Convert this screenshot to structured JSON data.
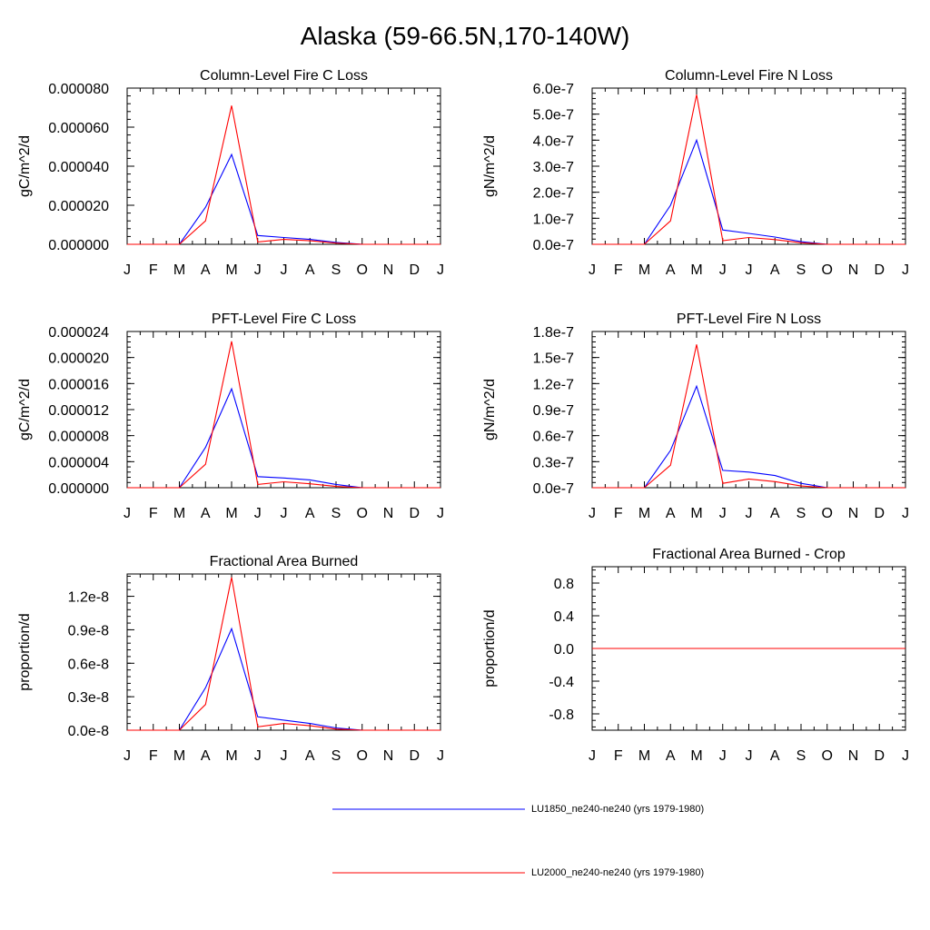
{
  "title": "Alaska (59-66.5N,170-140W)",
  "months": [
    "J",
    "F",
    "M",
    "A",
    "M",
    "J",
    "J",
    "A",
    "S",
    "O",
    "N",
    "D",
    "J"
  ],
  "legend": [
    {
      "name": "LU1850_ne240-ne240 (yrs 1979-1980)",
      "color": "#0000ff"
    },
    {
      "name": "LU2000_ne240-ne240 (yrs 1979-1980)",
      "color": "#ff0000"
    }
  ],
  "chart_data": [
    {
      "type": "line",
      "title": "Column-Level Fire C Loss",
      "ylabel": "gC/m^2/d",
      "ylim": [
        0,
        8e-05
      ],
      "yticks": [
        "0.000000",
        "0.000020",
        "0.000040",
        "0.000060",
        "0.000080"
      ],
      "yticks_values": [
        0,
        2e-05,
        4e-05,
        6e-05,
        8e-05
      ],
      "yminor_per_major": 4,
      "series": [
        {
          "name": "LU1850_ne240-ne240 (yrs 1979-1980)",
          "color": "#0000ff",
          "values": [
            0,
            0,
            0,
            1.9e-05,
            4.6e-05,
            4.5e-06,
            3.5e-06,
            2.5e-06,
            1e-06,
            0,
            0,
            0,
            0
          ]
        },
        {
          "name": "LU2000_ne240-ne240 (yrs 1979-1980)",
          "color": "#ff0000",
          "values": [
            0,
            0,
            0,
            1.2e-05,
            7.1e-05,
            1.2e-06,
            2.5e-06,
            1.8e-06,
            6e-07,
            0,
            0,
            0,
            0
          ]
        }
      ]
    },
    {
      "type": "line",
      "title": "Column-Level Fire N Loss",
      "ylabel": "gN/m^2/d",
      "ylim": [
        0,
        6e-07
      ],
      "yticks": [
        "0.0e-7",
        "1.0e-7",
        "2.0e-7",
        "3.0e-7",
        "4.0e-7",
        "5.0e-7",
        "6.0e-7"
      ],
      "yticks_values": [
        0,
        1e-07,
        2e-07,
        3e-07,
        4e-07,
        5e-07,
        6e-07
      ],
      "yminor_per_major": 4,
      "series": [
        {
          "name": "LU1850_ne240-ne240 (yrs 1979-1980)",
          "color": "#0000ff",
          "values": [
            0,
            0,
            0,
            1.5e-07,
            4e-07,
            5.5e-08,
            4.2e-08,
            2.8e-08,
            1e-08,
            0,
            0,
            0,
            0
          ]
        },
        {
          "name": "LU2000_ne240-ne240 (yrs 1979-1980)",
          "color": "#ff0000",
          "values": [
            0,
            0,
            0,
            9e-08,
            5.75e-07,
            1.4e-08,
            2.6e-08,
            1.8e-08,
            6e-09,
            0,
            0,
            0,
            0
          ]
        }
      ]
    },
    {
      "type": "line",
      "title": "PFT-Level Fire C Loss",
      "ylabel": "gC/m^2/d",
      "ylim": [
        0,
        2.4e-05
      ],
      "yticks": [
        "0.000000",
        "0.000004",
        "0.000008",
        "0.000012",
        "0.000016",
        "0.000020",
        "0.000024"
      ],
      "yticks_values": [
        0,
        4e-06,
        8e-06,
        1.2e-05,
        1.6e-05,
        2e-05,
        2.4e-05
      ],
      "yminor_per_major": 4,
      "series": [
        {
          "name": "LU1850_ne240-ne240 (yrs 1979-1980)",
          "color": "#0000ff",
          "values": [
            0,
            0,
            0,
            6.2e-06,
            1.52e-05,
            1.7e-06,
            1.5e-06,
            1.2e-06,
            5e-07,
            0,
            0,
            0,
            0
          ]
        },
        {
          "name": "LU2000_ne240-ne240 (yrs 1979-1980)",
          "color": "#ff0000",
          "values": [
            0,
            0,
            0,
            3.6e-06,
            2.25e-05,
            5e-07,
            9e-07,
            6e-07,
            2e-07,
            0,
            0,
            0,
            0
          ]
        }
      ]
    },
    {
      "type": "line",
      "title": "PFT-Level Fire N Loss",
      "ylabel": "gN/m^2/d",
      "ylim": [
        0,
        1.8e-07
      ],
      "yticks": [
        "0.0e-7",
        "0.3e-7",
        "0.6e-7",
        "0.9e-7",
        "1.2e-7",
        "1.5e-7",
        "1.8e-7"
      ],
      "yticks_values": [
        0,
        3e-08,
        6e-08,
        9e-08,
        1.2e-07,
        1.5e-07,
        1.8e-07
      ],
      "yminor_per_major": 4,
      "series": [
        {
          "name": "LU1850_ne240-ne240 (yrs 1979-1980)",
          "color": "#0000ff",
          "values": [
            0,
            0,
            0,
            4.3e-08,
            1.17e-07,
            2e-08,
            1.8e-08,
            1.4e-08,
            5e-09,
            0,
            0,
            0,
            0
          ]
        },
        {
          "name": "LU2000_ne240-ne240 (yrs 1979-1980)",
          "color": "#ff0000",
          "values": [
            0,
            0,
            0,
            2.6e-08,
            1.65e-07,
            5e-09,
            1e-08,
            7e-09,
            2e-09,
            0,
            0,
            0,
            0
          ]
        }
      ]
    },
    {
      "type": "line",
      "title": "Fractional Area Burned",
      "ylabel": "proportion/d",
      "ylim": [
        0,
        1.4e-08
      ],
      "yticks": [
        "0.0e-8",
        "0.3e-8",
        "0.6e-8",
        "0.9e-8",
        "1.2e-8"
      ],
      "yticks_values": [
        0,
        3e-09,
        6e-09,
        9e-09,
        1.2e-08
      ],
      "yminor_per_major": 4,
      "series": [
        {
          "name": "LU1850_ne240-ne240 (yrs 1979-1980)",
          "color": "#0000ff",
          "values": [
            0,
            0,
            0,
            3.8e-09,
            9.1e-09,
            1.2e-09,
            9e-10,
            6e-10,
            2e-10,
            0,
            0,
            0,
            0
          ]
        },
        {
          "name": "LU2000_ne240-ne240 (yrs 1979-1980)",
          "color": "#ff0000",
          "values": [
            0,
            0,
            0,
            2.3e-09,
            1.37e-08,
            3e-10,
            6e-10,
            4e-10,
            1e-10,
            0,
            0,
            0,
            0
          ]
        }
      ]
    },
    {
      "type": "line",
      "title": "Fractional Area Burned - Crop",
      "ylabel": "proportion/d",
      "ylim": [
        -1,
        1
      ],
      "yticks": [
        "-0.8",
        "-0.4",
        "0.0",
        "0.4",
        "0.8"
      ],
      "yticks_values": [
        -0.8,
        -0.4,
        0,
        0.4,
        0.8
      ],
      "yminor_per_major": 4,
      "series": [
        {
          "name": "LU1850_ne240-ne240 (yrs 1979-1980)",
          "color": "#0000ff",
          "values": [
            0,
            0,
            0,
            0,
            0,
            0,
            0,
            0,
            0,
            0,
            0,
            0,
            0
          ]
        },
        {
          "name": "LU2000_ne240-ne240 (yrs 1979-1980)",
          "color": "#ff0000",
          "values": [
            0,
            0,
            0,
            0,
            0,
            0,
            0,
            0,
            0,
            0,
            0,
            0,
            0
          ]
        }
      ]
    }
  ]
}
